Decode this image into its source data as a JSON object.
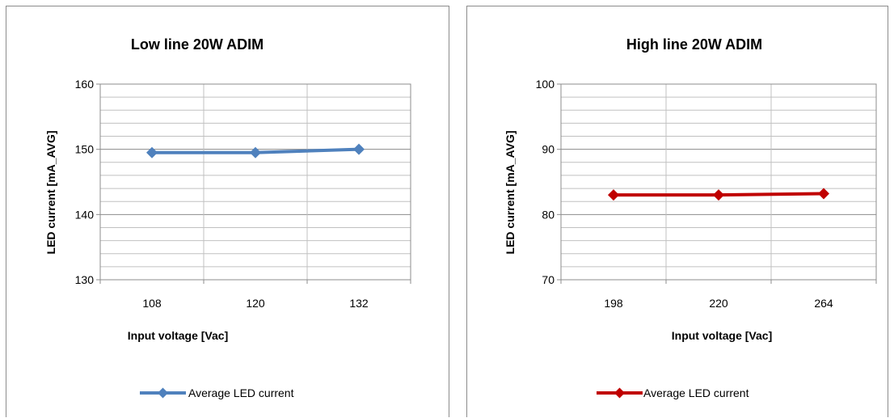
{
  "chart_data": [
    {
      "type": "line",
      "title": "Low line 20W ADIM",
      "xlabel": "Input voltage [Vac]",
      "ylabel": "LED current [mA_AVG]",
      "categories": [
        "108",
        "120",
        "132"
      ],
      "ylim": [
        130,
        160
      ],
      "yticks": [
        130,
        140,
        150,
        160
      ],
      "minor_step": 2,
      "grid": true,
      "legend_position": "bottom",
      "series": [
        {
          "name": "Average LED current",
          "values": [
            149.5,
            149.5,
            150.0
          ],
          "color": "#4f81bd",
          "marker": "diamond"
        }
      ]
    },
    {
      "type": "line",
      "title": "High line 20W ADIM",
      "xlabel": "Input voltage [Vac]",
      "ylabel": "LED current [mA_AVG]",
      "categories": [
        "198",
        "220",
        "264"
      ],
      "ylim": [
        70,
        100
      ],
      "yticks": [
        70,
        80,
        90,
        100
      ],
      "minor_step": 2,
      "grid": true,
      "legend_position": "bottom",
      "series": [
        {
          "name": "Average LED current",
          "values": [
            83.0,
            83.0,
            83.2
          ],
          "color": "#c00000",
          "marker": "diamond"
        }
      ]
    }
  ]
}
